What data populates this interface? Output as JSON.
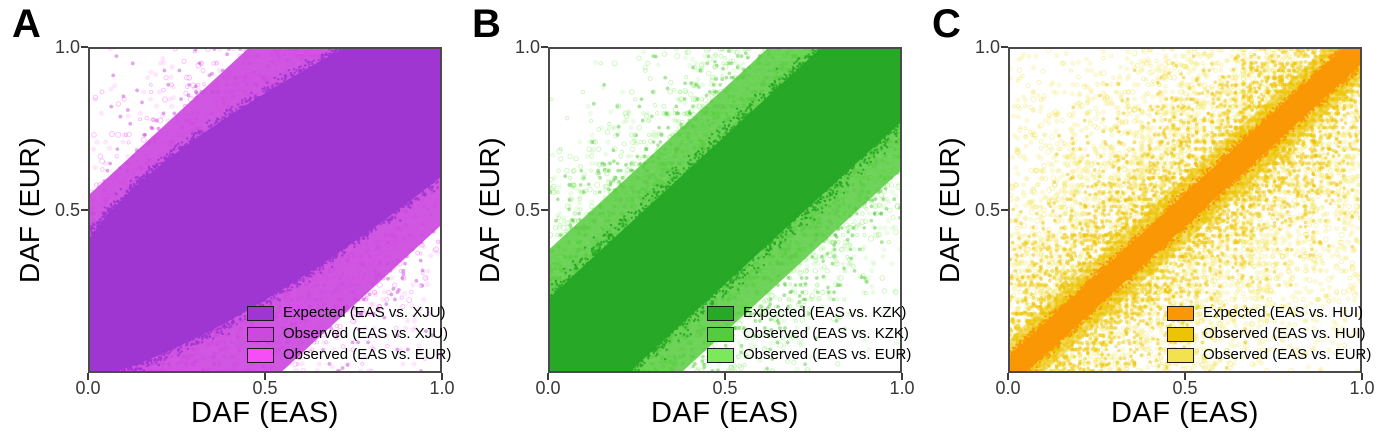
{
  "figure": {
    "background": "#ffffff",
    "panels": [
      {
        "label": "A",
        "xlabel": "DAF (EAS)",
        "ylabel": "DAF (EUR)",
        "xtick_labels": [
          "0.0",
          "0.5",
          "1.0"
        ],
        "ytick_labels": [
          "1.0",
          "0.5"
        ]
      },
      {
        "label": "B",
        "xlabel": "DAF (EAS)",
        "ylabel": "DAF (EUR)",
        "xtick_labels": [
          "0.0",
          "0.5",
          "1.0"
        ],
        "ytick_labels": [
          "1.0",
          "0.5"
        ]
      },
      {
        "label": "C",
        "xlabel": "DAF (EAS)",
        "ylabel": "DAF (EUR)",
        "xtick_labels": [
          "0.0",
          "0.5",
          "1.0"
        ],
        "ytick_labels": [
          "1.0",
          "0.5"
        ]
      }
    ]
  },
  "chart_data": [
    {
      "type": "scatter",
      "panel": "A",
      "xlabel": "DAF (EAS)",
      "ylabel": "DAF (EUR)",
      "xlim": [
        0,
        1
      ],
      "ylim": [
        0,
        1
      ],
      "xticks": [
        0.0,
        0.5,
        1.0
      ],
      "yticks": [
        0.5,
        1.0
      ],
      "grid": false,
      "legend_position": "bottom-right",
      "seed": 11,
      "quantize": "y",
      "series": [
        {
          "name": "Expected (EAS vs. XJU)",
          "color": "#9f36d1",
          "kind": "solid-diagonal-band",
          "upper_boundary": [
            [
              0,
              0.41
            ],
            [
              0.14,
              0.655
            ],
            [
              0.72,
              1
            ]
          ],
          "lower_boundary": [
            [
              0.08,
              0
            ],
            [
              0.46,
              0.14
            ],
            [
              1,
              0.6
            ]
          ],
          "edge_jitter": 0.012
        },
        {
          "name": "Observed (EAS vs. XJU)",
          "color": "#cc49de",
          "kind": "dense-scatter-band",
          "band_halfwidth": 0.55,
          "band_alpha": 0.92,
          "sigma": 0.24,
          "n": 2400,
          "alpha": 0.5
        },
        {
          "name": "Observed (EAS vs. EUR)",
          "color": "#f64ef6",
          "kind": "open-circle-scatter",
          "sigma": 0.33,
          "n_open": 3000,
          "n_fill": 3200,
          "alpha_open": 0.38,
          "alpha_fill": 0.13
        }
      ]
    },
    {
      "type": "scatter",
      "panel": "B",
      "xlabel": "DAF (EAS)",
      "ylabel": "DAF (EUR)",
      "xlim": [
        0,
        1
      ],
      "ylim": [
        0,
        1
      ],
      "xticks": [
        0.0,
        0.5,
        1.0
      ],
      "yticks": [
        0.5,
        1.0
      ],
      "grid": false,
      "legend_position": "bottom-right",
      "seed": 22,
      "quantize": "y",
      "series": [
        {
          "name": "Expected (EAS vs. KZK)",
          "color": "#27a827",
          "kind": "solid-diagonal-band",
          "upper_boundary": [
            [
              0,
              0.23
            ],
            [
              0.385,
              0.615
            ],
            [
              0.77,
              1
            ]
          ],
          "lower_boundary": [
            [
              0.23,
              0
            ],
            [
              0.615,
              0.385
            ],
            [
              1,
              0.77
            ]
          ],
          "edge_jitter": 0.02
        },
        {
          "name": "Observed (EAS vs. KZK)",
          "color": "#57cb40",
          "kind": "dense-scatter-band",
          "band_halfwidth": 0.38,
          "band_alpha": 0.85,
          "sigma": 0.22,
          "n": 2800,
          "alpha": 0.5
        },
        {
          "name": "Observed (EAS vs. EUR)",
          "color": "#7ce95a",
          "kind": "open-circle-scatter",
          "sigma": 0.3,
          "n_open": 3000,
          "n_fill": 3400,
          "alpha_open": 0.4,
          "alpha_fill": 0.14
        }
      ]
    },
    {
      "type": "scatter",
      "panel": "C",
      "xlabel": "DAF (EAS)",
      "ylabel": "DAF (EUR)",
      "xlim": [
        0,
        1
      ],
      "ylim": [
        0,
        1
      ],
      "xticks": [
        0.0,
        0.5,
        1.0
      ],
      "yticks": [
        0.5,
        1.0
      ],
      "grid": false,
      "legend_position": "bottom-right",
      "seed": 33,
      "quantize": "xy",
      "series": [
        {
          "name": "Expected (EAS vs. HUI)",
          "color": "#fa9705",
          "kind": "solid-diagonal-band",
          "upper_boundary": [
            [
              0,
              0.05
            ],
            [
              0.475,
              0.525
            ],
            [
              0.95,
              1
            ]
          ],
          "lower_boundary": [
            [
              0.05,
              0
            ],
            [
              0.525,
              0.475
            ],
            [
              1,
              0.95
            ]
          ],
          "edge_jitter": 0.008
        },
        {
          "name": "Observed (EAS vs. HUI)",
          "color": "#edc306",
          "kind": "dense-scatter-band",
          "band_halfwidth": 0.1,
          "band_alpha": 0.55,
          "sigma": 0.2,
          "n": 4200,
          "alpha": 0.5
        },
        {
          "name": "Observed (EAS vs. EUR)",
          "color": "#f1e24e",
          "kind": "open-circle-scatter",
          "sigma": 0.42,
          "n_open": 2600,
          "n_fill": 5600,
          "alpha_open": 0.45,
          "alpha_fill": 0.22
        }
      ]
    }
  ]
}
